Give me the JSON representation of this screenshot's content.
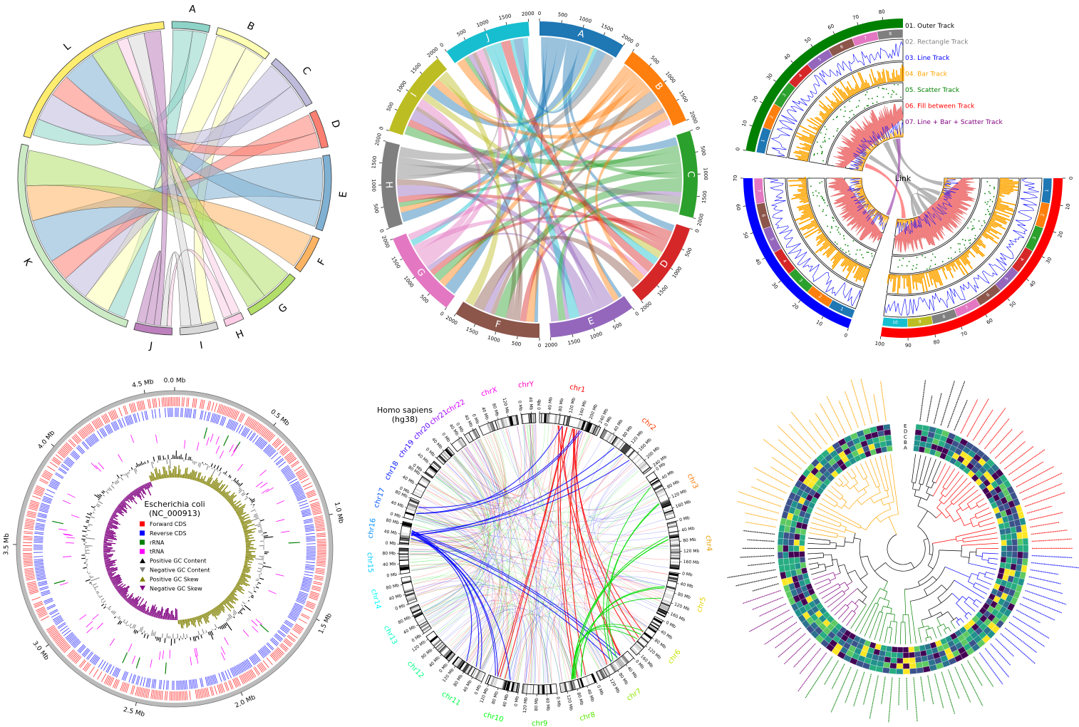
{
  "chart_data": [
    {
      "type": "chord",
      "sectors": [
        {
          "name": "A",
          "size": 10,
          "color": "#8dd3c7"
        },
        {
          "name": "B",
          "size": 15,
          "color": "#ffffb3"
        },
        {
          "name": "C",
          "size": 15,
          "color": "#bebada"
        },
        {
          "name": "D",
          "size": 10,
          "color": "#fb8072"
        },
        {
          "name": "E",
          "size": 20,
          "color": "#80b1d3"
        },
        {
          "name": "F",
          "size": 10,
          "color": "#fdb462"
        },
        {
          "name": "G",
          "size": 15,
          "color": "#b3de69"
        },
        {
          "name": "H",
          "size": 5,
          "color": "#fccde5"
        },
        {
          "name": "I",
          "size": 10,
          "color": "#d9d9d9"
        },
        {
          "name": "J",
          "size": 10,
          "color": "#bc80bd"
        },
        {
          "name": "K",
          "size": 60,
          "color": "#ccebc5"
        },
        {
          "name": "L",
          "size": 50,
          "color": "#ffed6f"
        }
      ],
      "links": [
        [
          "A",
          "K",
          4
        ],
        [
          "A",
          "L",
          3
        ],
        [
          "B",
          "K",
          6
        ],
        [
          "B",
          "I",
          4
        ],
        [
          "C",
          "K",
          6
        ],
        [
          "C",
          "L",
          5
        ],
        [
          "D",
          "K",
          5
        ],
        [
          "D",
          "L",
          4
        ],
        [
          "E",
          "K",
          10
        ],
        [
          "E",
          "L",
          6
        ],
        [
          "F",
          "K",
          8
        ],
        [
          "G",
          "K",
          8
        ],
        [
          "G",
          "L",
          5
        ],
        [
          "H",
          "L",
          2
        ],
        [
          "H",
          "J",
          2
        ],
        [
          "I",
          "L",
          3
        ],
        [
          "I",
          "J",
          3
        ],
        [
          "J",
          "L",
          3
        ],
        [
          "J",
          "J",
          4
        ]
      ]
    },
    {
      "type": "chord",
      "tick_interval": 500,
      "sectors": [
        {
          "name": "A",
          "size": 2000,
          "color": "#1f77b4"
        },
        {
          "name": "B",
          "size": 2000,
          "color": "#ff7f0e"
        },
        {
          "name": "C",
          "size": 2000,
          "color": "#2ca02c"
        },
        {
          "name": "D",
          "size": 2000,
          "color": "#d62728"
        },
        {
          "name": "E",
          "size": 2000,
          "color": "#9467bd"
        },
        {
          "name": "F",
          "size": 2000,
          "color": "#8c564b"
        },
        {
          "name": "G",
          "size": 2000,
          "color": "#e377c2"
        },
        {
          "name": "H",
          "size": 2000,
          "color": "#7f7f7f"
        },
        {
          "name": "I",
          "size": 2000,
          "color": "#bcbd22"
        },
        {
          "name": "J",
          "size": 2000,
          "color": "#17becf"
        }
      ],
      "links": [
        "A-E",
        "A-F",
        "A-G",
        "A-H",
        "A-D",
        "A-C",
        "B-G",
        "B-H",
        "B-F",
        "B-J",
        "B-E",
        "C-H",
        "C-I",
        "C-G",
        "C-J",
        "D-F",
        "D-G",
        "D-I",
        "D-H",
        "E-I",
        "E-J",
        "E-H",
        "E-G",
        "F-I",
        "F-J",
        "F-H",
        "G-J",
        "G-I",
        "H-J",
        "H-B",
        "I-D",
        "J-D",
        "J-E",
        "A-I",
        "B-I",
        "C-F",
        "D-J",
        "E-C",
        "F-B",
        "G-D",
        "H-C",
        "I-A",
        "J-A",
        "A-J",
        "C-E",
        "E-F",
        "B-D",
        "F-D",
        "H-A",
        "I-F",
        "J-G",
        "G-B"
      ]
    },
    {
      "type": "circos-tracks",
      "link_label": "Link",
      "legend": [
        {
          "label": "01. Outer Track",
          "color": "#000000"
        },
        {
          "label": "02. Rectangle Track",
          "color": "#808080"
        },
        {
          "label": "03. Line Track",
          "color": "#0000ff"
        },
        {
          "label": "04. Bar Track",
          "color": "#ffa500"
        },
        {
          "label": "05. Scatter Track",
          "color": "#008000"
        },
        {
          "label": "06. Fill between Track",
          "color": "#ff0000"
        },
        {
          "label": "07. Line + Bar + Scatter Track",
          "color": "#800080"
        }
      ],
      "sectors": [
        {
          "range": [
            0,
            88
          ],
          "tick_interval": 10,
          "outer_color": "#008000",
          "rect_count": 8
        },
        {
          "range": [
            0,
            100
          ],
          "tick_interval": 10,
          "outer_color": "#ff0000",
          "rect_count": 10
        },
        {
          "range": [
            0,
            70
          ],
          "tick_interval": 10,
          "outer_color": "#0000ff",
          "rect_count": 7
        }
      ],
      "rect_colors": [
        "#1f77b4",
        "#ff7f0e",
        "#2ca02c",
        "#d62728",
        "#9467bd",
        "#8c564b",
        "#e377c2",
        "#7f7f7f",
        "#bcbd22",
        "#17becf"
      ]
    },
    {
      "type": "genome-circos",
      "title": "Escherichia coli",
      "subtitle": "(NC_000913)",
      "genome_size_mb": 4.64,
      "tick_interval_mb": 0.5,
      "tick_unit": "Mb",
      "legend": [
        {
          "label": "Forward CDS",
          "color": "#ff0000",
          "marker": "square"
        },
        {
          "label": "Reverse CDS",
          "color": "#0000ff",
          "marker": "square"
        },
        {
          "label": "rRNA",
          "color": "#008000",
          "marker": "square"
        },
        {
          "label": "tRNA",
          "color": "#ff00ff",
          "marker": "square"
        },
        {
          "label": "Positive GC Content",
          "color": "#000000",
          "marker": "triangle-up"
        },
        {
          "label": "Negative GC Content",
          "color": "#808080",
          "marker": "triangle-down"
        },
        {
          "label": "Positive GC Skew",
          "color": "#808000",
          "marker": "triangle-up"
        },
        {
          "label": "Negative GC Skew",
          "color": "#800080",
          "marker": "triangle-down"
        }
      ]
    },
    {
      "type": "chromosome-circos",
      "title": "Homo sapiens",
      "subtitle": "(hg38)",
      "tick_interval_mb": 40,
      "tick_unit": "Mb",
      "chromosomes": [
        {
          "name": "chr1",
          "length_mb": 248
        },
        {
          "name": "chr2",
          "length_mb": 242
        },
        {
          "name": "chr3",
          "length_mb": 198
        },
        {
          "name": "chr4",
          "length_mb": 190
        },
        {
          "name": "chr5",
          "length_mb": 181
        },
        {
          "name": "chr6",
          "length_mb": 171
        },
        {
          "name": "chr7",
          "length_mb": 159
        },
        {
          "name": "chr8",
          "length_mb": 145
        },
        {
          "name": "chr9",
          "length_mb": 138
        },
        {
          "name": "chr10",
          "length_mb": 134
        },
        {
          "name": "chr11",
          "length_mb": 135
        },
        {
          "name": "chr12",
          "length_mb": 133
        },
        {
          "name": "chr13",
          "length_mb": 114
        },
        {
          "name": "chr14",
          "length_mb": 107
        },
        {
          "name": "chr15",
          "length_mb": 102
        },
        {
          "name": "chr16",
          "length_mb": 90
        },
        {
          "name": "chr17",
          "length_mb": 83
        },
        {
          "name": "chr18",
          "length_mb": 80
        },
        {
          "name": "chr19",
          "length_mb": 59
        },
        {
          "name": "chr20",
          "length_mb": 64
        },
        {
          "name": "chr21",
          "length_mb": 47
        },
        {
          "name": "chr22",
          "length_mb": 51
        },
        {
          "name": "chrX",
          "length_mb": 156
        },
        {
          "name": "chrY",
          "length_mb": 57
        }
      ],
      "link_colors": [
        "#ff0000",
        "#0000ff",
        "#00dd00"
      ]
    },
    {
      "type": "phylogenetic-tree-heatmap",
      "heatmap_rows": [
        "E",
        "D",
        "C",
        "B",
        "A"
      ],
      "heatmap_colormap": [
        "#440154",
        "#3b528b",
        "#2c728e",
        "#21918c",
        "#27ad81",
        "#5ec962",
        "#fde725"
      ],
      "clade_colors": [
        "#000000",
        "#ff0000",
        "#0000ff",
        "#008000",
        "#800080",
        "#000000",
        "#ffa500"
      ]
    }
  ]
}
